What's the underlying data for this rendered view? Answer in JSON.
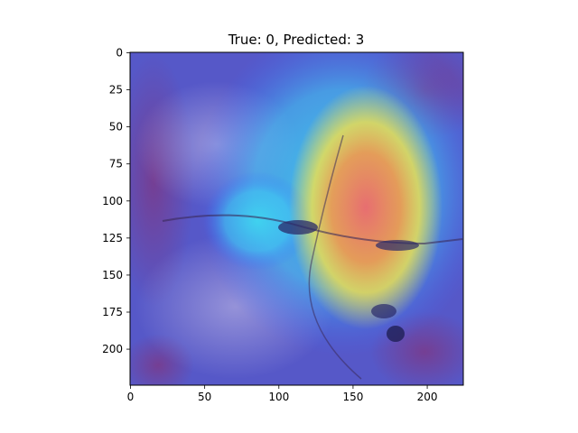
{
  "chart_data": {
    "type": "heatmap",
    "title": "True: 0, Predicted: 3",
    "xlabel": "",
    "ylabel": "",
    "xlim": [
      0,
      224
    ],
    "ylim": [
      224,
      0
    ],
    "xticks": [
      0,
      50,
      100,
      150,
      200
    ],
    "yticks": [
      0,
      25,
      50,
      75,
      100,
      125,
      150,
      175,
      200
    ],
    "grid": false,
    "legend": "none",
    "overlay": "Grad-CAM heatmap (jet colormap) over histology tissue image",
    "colors": {
      "background_low": "#5658c8",
      "cool": "#3b6cff",
      "cyan": "#3fd8f0",
      "yellow": "#f4e04a",
      "orange": "#f59a4a",
      "hot": "#f06a6a",
      "tissue_purple": "#7a3a8a",
      "tissue_pale": "#c9c2e6"
    }
  }
}
